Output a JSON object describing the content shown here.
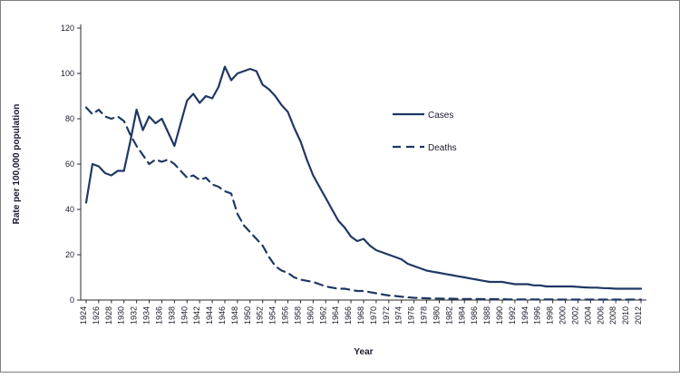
{
  "figure": {
    "background": "#ffffff",
    "border_color": "#7f7f7f"
  },
  "chart_data": {
    "type": "line",
    "title": "",
    "xlabel": "Year",
    "ylabel": "Rate per 100,000 population",
    "x_start": 1924,
    "x_end": 2012,
    "x_tick_step": 2,
    "ylim": [
      0,
      120
    ],
    "y_tick_step": 20,
    "grid": false,
    "legend_position": "inside-center-right",
    "line_color": "#1f3864",
    "axis_color": "#2b2b2b",
    "text_color": "#1a1a2e",
    "years": [
      1924,
      1925,
      1926,
      1927,
      1928,
      1929,
      1930,
      1931,
      1932,
      1933,
      1934,
      1935,
      1936,
      1937,
      1938,
      1939,
      1940,
      1941,
      1942,
      1943,
      1944,
      1945,
      1946,
      1947,
      1948,
      1949,
      1950,
      1951,
      1952,
      1953,
      1954,
      1955,
      1956,
      1957,
      1958,
      1959,
      1960,
      1961,
      1962,
      1963,
      1964,
      1965,
      1966,
      1967,
      1968,
      1969,
      1970,
      1971,
      1972,
      1973,
      1974,
      1975,
      1976,
      1977,
      1978,
      1979,
      1980,
      1981,
      1982,
      1983,
      1984,
      1985,
      1986,
      1987,
      1988,
      1989,
      1990,
      1991,
      1992,
      1993,
      1994,
      1995,
      1996,
      1997,
      1998,
      1999,
      2000,
      2001,
      2002,
      2003,
      2004,
      2005,
      2006,
      2007,
      2008,
      2009,
      2010,
      2011,
      2012
    ],
    "series": [
      {
        "name": "Cases",
        "style": "solid",
        "values": [
          43,
          60,
          59,
          56,
          55,
          57,
          57,
          70,
          84,
          75,
          81,
          78,
          80,
          74,
          68,
          78,
          88,
          91,
          87,
          90,
          89,
          94,
          103,
          97,
          100,
          101,
          102,
          101,
          95,
          93,
          90,
          86,
          83,
          76,
          70,
          62,
          55,
          50,
          45,
          40,
          35,
          32,
          28,
          26,
          27,
          24,
          22,
          21,
          20,
          19,
          18,
          16,
          15,
          14,
          13,
          12.5,
          12,
          11.5,
          11,
          10.5,
          10,
          9.5,
          9,
          8.5,
          8,
          8,
          8,
          7.5,
          7,
          7,
          7,
          6.5,
          6.5,
          6,
          6,
          6,
          6,
          6,
          5.8,
          5.6,
          5.5,
          5.5,
          5.3,
          5.2,
          5,
          5,
          5,
          5,
          5
        ]
      },
      {
        "name": "Deaths",
        "style": "dashed",
        "values": [
          85,
          82,
          84,
          81,
          80,
          81,
          79,
          73,
          68,
          64,
          60,
          62,
          61,
          62,
          60,
          57,
          54,
          55,
          53,
          54,
          51,
          50,
          48,
          47,
          38,
          33,
          30,
          27,
          24,
          19,
          15,
          13,
          12,
          10,
          9,
          8.5,
          8,
          7,
          6,
          5.5,
          5,
          5,
          4.5,
          4,
          4,
          3.5,
          3,
          2.5,
          2,
          1.8,
          1.5,
          1.2,
          1,
          0.9,
          0.8,
          0.7,
          0.7,
          0.6,
          0.6,
          0.5,
          0.5,
          0.5,
          0.5,
          0.4,
          0.4,
          0.4,
          0.4,
          0.3,
          0.3,
          0.3,
          0.3,
          0.3,
          0.3,
          0.3,
          0.3,
          0.2,
          0.2,
          0.2,
          0.2,
          0.2,
          0.2,
          0.2,
          0.2,
          0.2,
          0.2,
          0.2,
          0.2,
          0.2,
          0.2
        ]
      }
    ]
  }
}
